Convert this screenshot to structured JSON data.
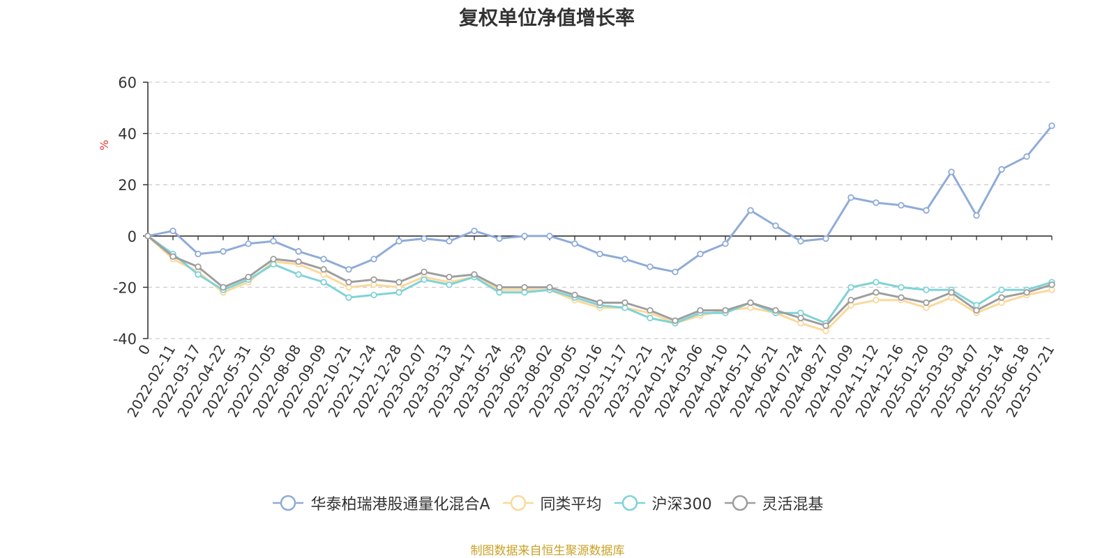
{
  "title": "复权单位净值增长率",
  "source_text": "制图数据来自恒生聚源数据库",
  "chart_data": {
    "type": "line",
    "title": "复权单位净值增长率",
    "ylabel": "%",
    "ylim": [
      -40,
      60
    ],
    "yticks": [
      "60",
      "40",
      "20",
      "0",
      "-20",
      "-40"
    ],
    "yticks_values": [
      60,
      40,
      20,
      0,
      -20,
      -40
    ],
    "grid": true,
    "legend_position": "bottom",
    "x": [
      "0",
      "2022-02-11",
      "2022-03-17",
      "2022-04-22",
      "2022-05-31",
      "2022-07-05",
      "2022-08-08",
      "2022-09-09",
      "2022-10-21",
      "2022-11-24",
      "2022-12-28",
      "2023-02-07",
      "2023-03-13",
      "2023-04-17",
      "2023-05-24",
      "2023-06-29",
      "2023-08-02",
      "2023-09-05",
      "2023-10-16",
      "2023-11-17",
      "2023-12-21",
      "2024-01-24",
      "2024-03-06",
      "2024-04-10",
      "2024-05-17",
      "2024-06-21",
      "2024-07-24",
      "2024-08-27",
      "2024-10-09",
      "2024-11-12",
      "2024-12-16",
      "2025-01-20",
      "2025-03-03",
      "2025-04-07",
      "2025-05-14",
      "2025-06-18",
      "2025-07-21"
    ],
    "series": [
      {
        "name": "华泰柏瑞港股通量化混合A",
        "color": "#8fabd8",
        "values": [
          0,
          2,
          -7,
          -6,
          -3,
          -2,
          -6,
          -9,
          -13,
          -9,
          -2,
          -1,
          -2,
          2,
          -1,
          0,
          0,
          -3,
          -7,
          -9,
          -12,
          -14,
          -7,
          -3,
          10,
          4,
          -2,
          -1,
          15,
          13,
          12,
          10,
          25,
          8,
          26,
          31,
          43
        ]
      },
      {
        "name": "同类平均",
        "color": "#fcd89a",
        "values": [
          0,
          -9,
          -14,
          -22,
          -18,
          -10,
          -11,
          -15,
          -20,
          -19,
          -20,
          -16,
          -18,
          -16,
          -21,
          -21,
          -21,
          -25,
          -28,
          -28,
          -30,
          -34,
          -31,
          -29,
          -28,
          -30,
          -34,
          -37,
          -27,
          -25,
          -25,
          -28,
          -24,
          -30,
          -26,
          -23,
          -21
        ]
      },
      {
        "name": "沪深300",
        "color": "#7fd3d6",
        "values": [
          0,
          -7,
          -15,
          -21,
          -17,
          -11,
          -15,
          -18,
          -24,
          -23,
          -22,
          -17,
          -19,
          -16,
          -22,
          -22,
          -21,
          -24,
          -27,
          -28,
          -32,
          -34,
          -30,
          -30,
          -26,
          -30,
          -30,
          -34,
          -20,
          -18,
          -20,
          -21,
          -21,
          -27,
          -21,
          -21,
          -18
        ]
      },
      {
        "name": "灵活混基",
        "color": "#9e9e9e",
        "values": [
          0,
          -8,
          -12,
          -20,
          -16,
          -9,
          -10,
          -13,
          -18,
          -17,
          -18,
          -14,
          -16,
          -15,
          -20,
          -20,
          -20,
          -23,
          -26,
          -26,
          -29,
          -33,
          -29,
          -29,
          -26,
          -29,
          -32,
          -35,
          -25,
          -22,
          -24,
          -26,
          -22,
          -29,
          -24,
          -22,
          -19
        ]
      }
    ]
  }
}
